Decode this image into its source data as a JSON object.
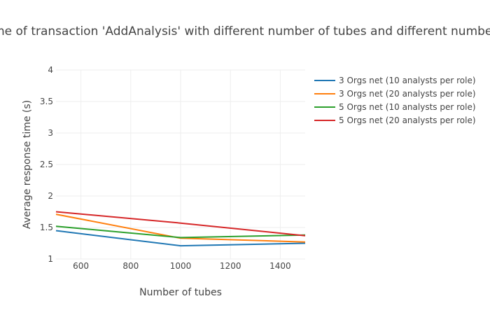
{
  "chart_data": {
    "type": "line",
    "title": "Response time of transaction 'AddAnalysis' with different number of tubes and different number of analysts",
    "xlabel": "Number of tubes",
    "ylabel": "Average response time (s)",
    "xlim": [
      500,
      1500
    ],
    "ylim": [
      1,
      4
    ],
    "x_ticks": [
      600,
      800,
      1000,
      1200,
      1400
    ],
    "y_ticks": [
      "1",
      "1.5",
      "2",
      "2.5",
      "3",
      "3.5",
      "4"
    ],
    "x": [
      500,
      1000,
      1500
    ],
    "grid": true,
    "legend_position": "top-right",
    "series": [
      {
        "name": "3 Orgs net (10 analysts per role)",
        "color": "#1f77b4",
        "values": [
          1.45,
          1.21,
          1.25
        ]
      },
      {
        "name": "3 Orgs net (20 analysts per role)",
        "color": "#ff7f0e",
        "values": [
          1.71,
          1.33,
          1.27
        ]
      },
      {
        "name": "5 Orgs net (10 analysts per role)",
        "color": "#2ca02c",
        "values": [
          1.52,
          1.34,
          1.38
        ]
      },
      {
        "name": "5 Orgs net (20 analysts per role)",
        "color": "#d62728",
        "values": [
          1.75,
          1.57,
          1.37
        ]
      }
    ]
  }
}
